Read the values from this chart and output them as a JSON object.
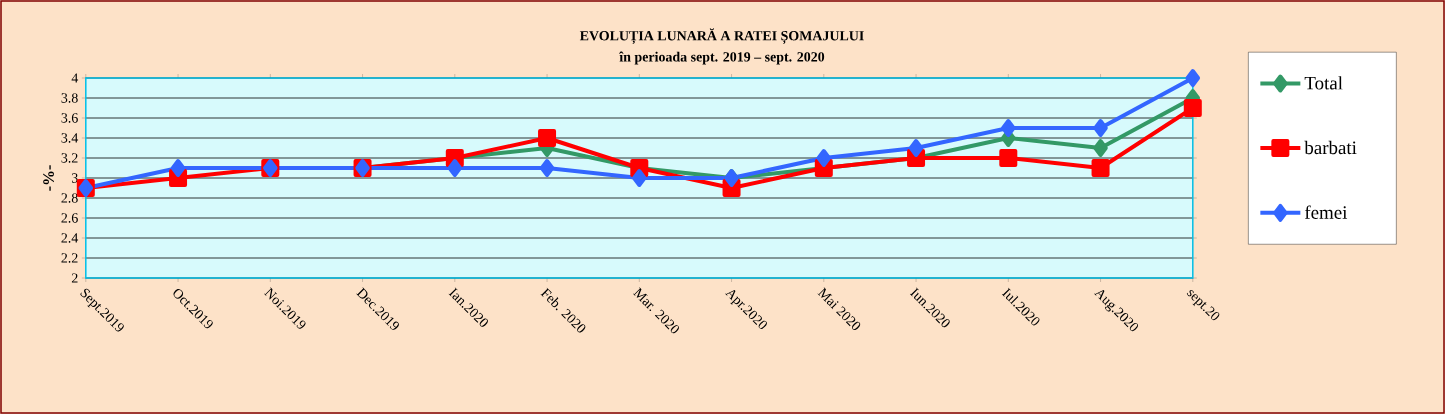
{
  "chart_data": {
    "type": "line",
    "title": "EVOLUȚIA LUNARĂ A RATEI ȘOMAJULUI",
    "subtitle": "în perioada sept. 2019 – sept. 2020",
    "ylabel": "-%-",
    "categories": [
      "Sept.2019",
      "Oct.2019",
      "Noi.2019",
      "Dec.2019",
      "Ian.2020",
      "Feb. 2020",
      "Mar. 2020",
      "Apr.2020",
      "Mai 2020",
      "Iun.2020",
      "Iul.2020",
      "Aug.2020",
      "sept.20"
    ],
    "series": [
      {
        "name": "Total",
        "color": "#339966",
        "marker": "diamond",
        "values": [
          null,
          null,
          null,
          3.1,
          3.2,
          3.3,
          3.1,
          3.0,
          3.1,
          3.2,
          3.4,
          3.3,
          3.8
        ]
      },
      {
        "name": "barbati",
        "color": "#ff0000",
        "marker": "square",
        "values": [
          2.9,
          3.0,
          3.1,
          3.1,
          3.2,
          3.4,
          3.1,
          2.9,
          3.1,
          3.2,
          3.2,
          3.1,
          3.7
        ]
      },
      {
        "name": "femei",
        "color": "#3366ff",
        "marker": "diamond",
        "values": [
          2.9,
          3.1,
          3.1,
          3.1,
          3.1,
          3.1,
          3.0,
          3.0,
          3.2,
          3.3,
          3.5,
          3.5,
          4.0
        ]
      }
    ],
    "ylim": [
      2,
      4
    ],
    "yticks": [
      2,
      2.2,
      2.4,
      2.6,
      2.8,
      3,
      3.2,
      3.4,
      3.6,
      3.8,
      4
    ],
    "grid": "y",
    "legend": "right"
  }
}
